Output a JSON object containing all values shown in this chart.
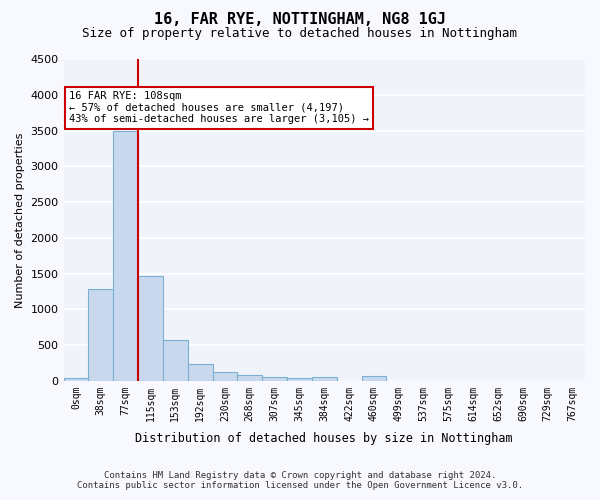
{
  "title": "16, FAR RYE, NOTTINGHAM, NG8 1GJ",
  "subtitle": "Size of property relative to detached houses in Nottingham",
  "xlabel": "Distribution of detached houses by size in Nottingham",
  "ylabel": "Number of detached properties",
  "bar_color": "#c9d9ed",
  "bar_edge_color": "#7aafd4",
  "background_color": "#f0f4fa",
  "grid_color": "#ffffff",
  "categories": [
    "0sqm",
    "38sqm",
    "77sqm",
    "115sqm",
    "153sqm",
    "192sqm",
    "230sqm",
    "268sqm",
    "307sqm",
    "345sqm",
    "384sqm",
    "422sqm",
    "460sqm",
    "499sqm",
    "537sqm",
    "575sqm",
    "614sqm",
    "652sqm",
    "690sqm",
    "729sqm",
    "767sqm"
  ],
  "values": [
    40,
    1280,
    3500,
    1460,
    575,
    240,
    120,
    80,
    55,
    35,
    55,
    0,
    60,
    0,
    0,
    0,
    0,
    0,
    0,
    0,
    0
  ],
  "ylim": [
    0,
    4500
  ],
  "yticks": [
    0,
    500,
    1000,
    1500,
    2000,
    2500,
    3000,
    3500,
    4000,
    4500
  ],
  "property_line_x": 2.85,
  "annotation_text": "16 FAR RYE: 108sqm\n← 57% of detached houses are smaller (4,197)\n43% of semi-detached houses are larger (3,105) →",
  "annotation_box_color": "#ffffff",
  "annotation_border_color": "#cc0000",
  "footnote": "Contains HM Land Registry data © Crown copyright and database right 2024.\nContains public sector information licensed under the Open Government Licence v3.0."
}
